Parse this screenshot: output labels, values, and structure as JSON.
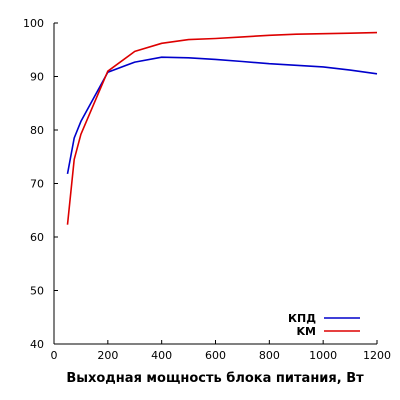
{
  "chart_data": {
    "type": "line",
    "xlabel": "Выходная мощность блока питания, Вт",
    "ylabel": "",
    "xlim": [
      0,
      1200
    ],
    "ylim": [
      40,
      100
    ],
    "xticks": [
      0,
      200,
      400,
      600,
      800,
      1000,
      1200
    ],
    "yticks": [
      40,
      50,
      60,
      70,
      80,
      90,
      100
    ],
    "grid": false,
    "legend_position": "bottom-right",
    "series": [
      {
        "name": "КПД",
        "color": "#0000cc",
        "x": [
          50,
          75,
          100,
          200,
          300,
          400,
          500,
          600,
          700,
          800,
          900,
          1000,
          1100,
          1200
        ],
        "y": [
          71.8,
          78.5,
          81.6,
          90.8,
          92.7,
          93.6,
          93.5,
          93.2,
          92.8,
          92.4,
          92.1,
          91.8,
          91.2,
          90.5
        ]
      },
      {
        "name": "KM",
        "color": "#dd0000",
        "x": [
          50,
          75,
          100,
          200,
          300,
          400,
          500,
          600,
          700,
          800,
          900,
          1000,
          1100,
          1200
        ],
        "y": [
          62.3,
          74.5,
          79.2,
          91.0,
          94.7,
          96.2,
          96.9,
          97.1,
          97.4,
          97.7,
          97.9,
          98.0,
          98.1,
          98.2
        ]
      }
    ]
  }
}
